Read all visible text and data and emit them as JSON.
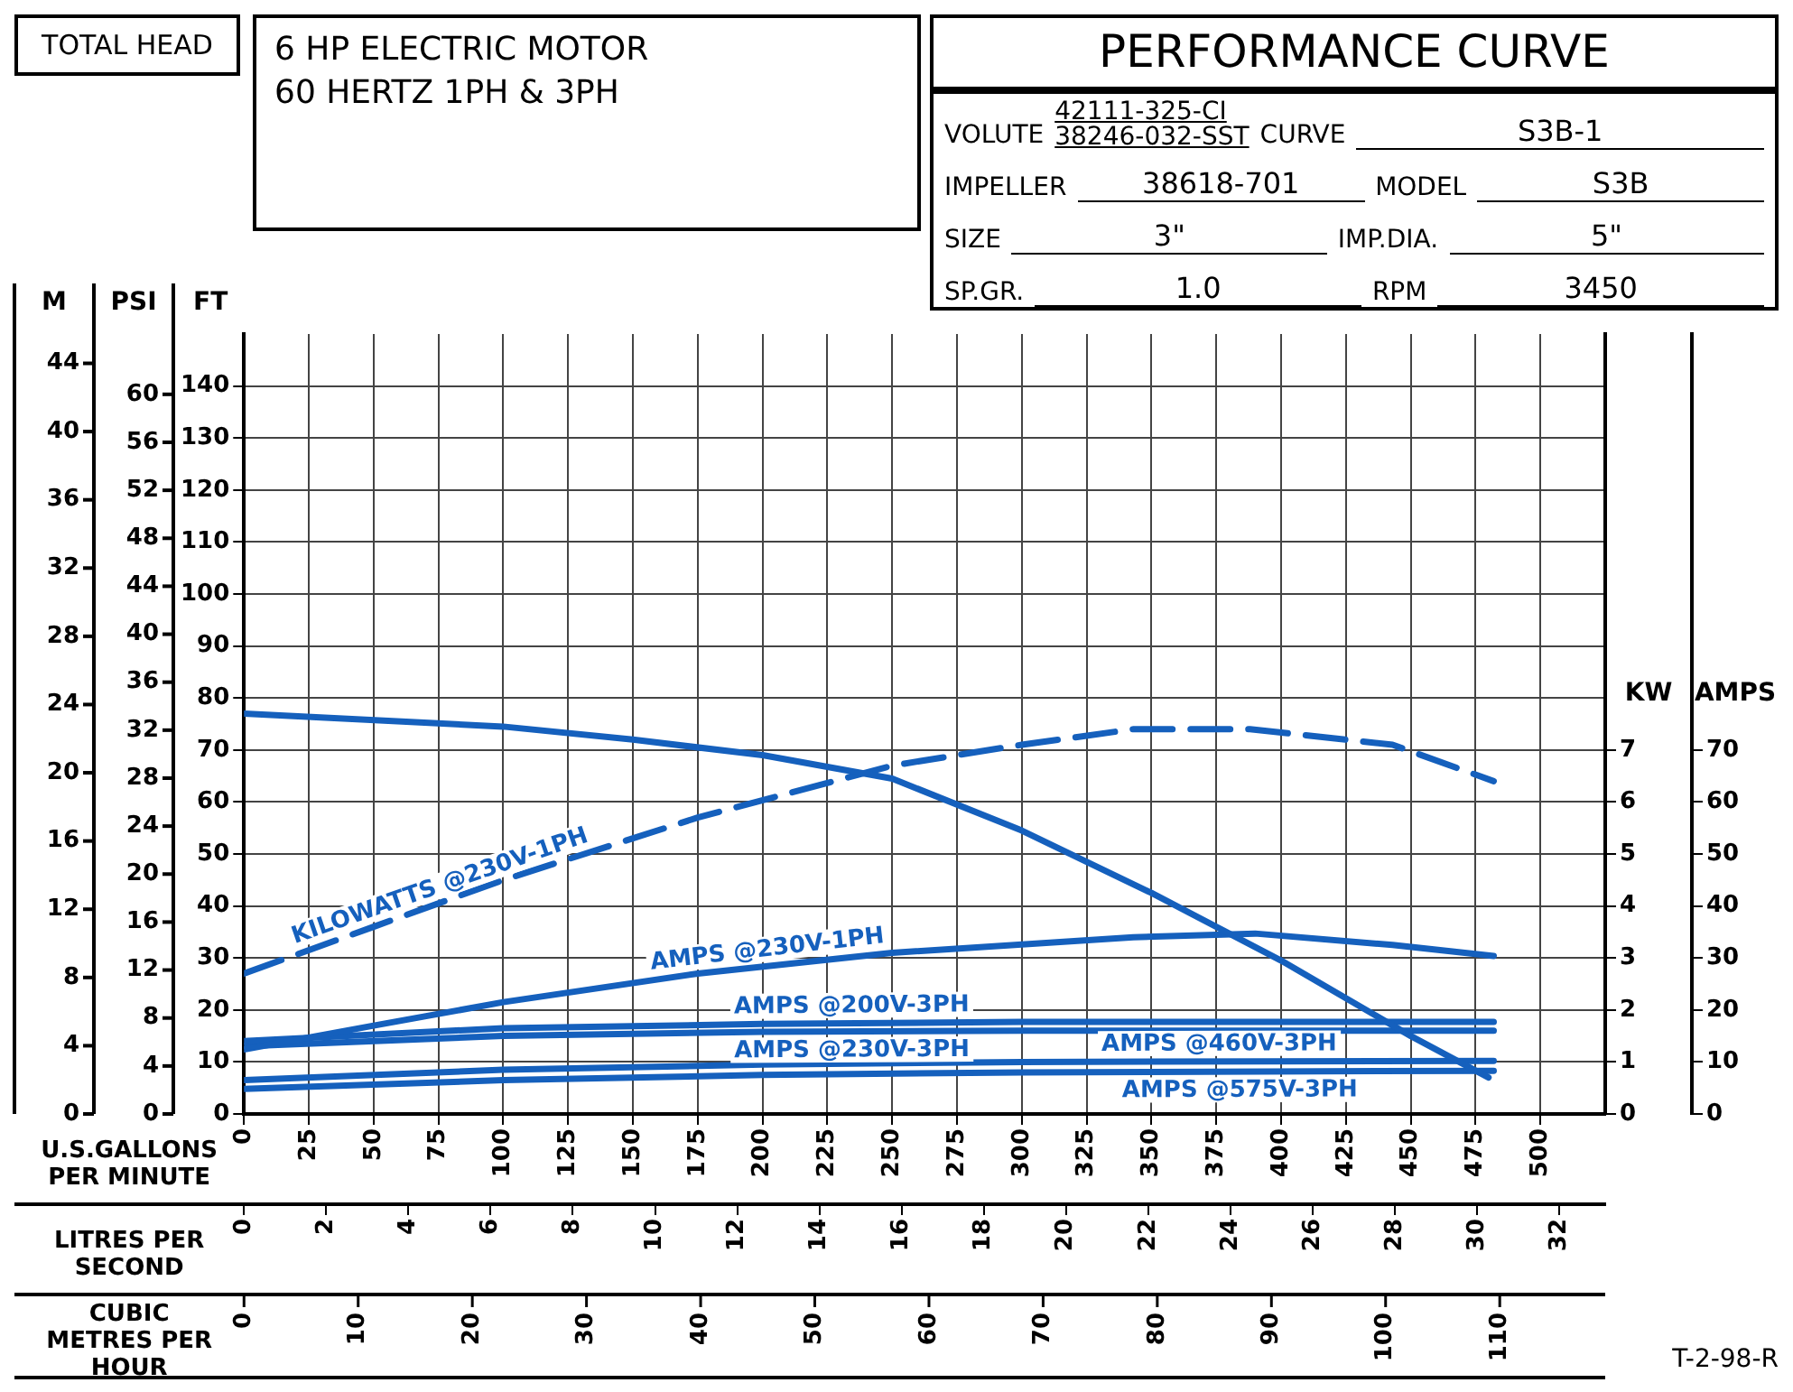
{
  "chart_data": {
    "type": "line",
    "title": "PERFORMANCE CURVE",
    "subtitle": "6 HP ELECTRIC MOTOR\n60 HERTZ 1PH & 3PH",
    "xlabel": "U.S.GALLONS PER MINUTE",
    "x2label": "LITRES PER SECOND",
    "ylabel": "FT",
    "y2label": "KW",
    "y3label": "AMPS",
    "xlim": [
      0,
      525
    ],
    "xticks": [
      0,
      25,
      50,
      75,
      100,
      125,
      150,
      175,
      200,
      225,
      250,
      275,
      300,
      325,
      350,
      375,
      400,
      425,
      450,
      475,
      500
    ],
    "x2lim": [
      0,
      33.12
    ],
    "x2ticks": [
      0,
      2,
      4,
      6,
      8,
      10,
      12,
      14,
      16,
      18,
      20,
      22,
      24,
      26,
      28,
      30,
      32
    ],
    "ylim": [
      0,
      150
    ],
    "yticks": [
      0,
      10,
      20,
      30,
      40,
      50,
      60,
      70,
      80,
      90,
      100,
      110,
      120,
      130,
      140
    ],
    "y2lim": [
      0,
      15
    ],
    "y2ticks": [
      0,
      1,
      2,
      3,
      4,
      5,
      6,
      7
    ],
    "y3lim": [
      0,
      150
    ],
    "y3ticks": [
      0,
      10,
      20,
      30,
      40,
      50,
      60,
      70
    ],
    "grid": true,
    "legend": false,
    "marker": "none",
    "annotations": [
      "TOTAL HEAD",
      "VOLUTE",
      "42111-325-CI",
      "38246-032-SST",
      "CURVE",
      "S3B-1",
      "IMPELLER",
      "38618-701",
      "MODEL",
      "S3B",
      "SIZE",
      "3\"",
      "IMP.DIA.",
      "5\"",
      "SP.GR.",
      "1.0",
      "RPM",
      "3450",
      "T-2-98-R",
      "M",
      "0",
      "4",
      "8",
      "12",
      "16",
      "20",
      "24",
      "28",
      "32",
      "36",
      "40",
      "44",
      "PSI",
      "0",
      "4",
      "8",
      "12",
      "16",
      "20",
      "24",
      "28",
      "32",
      "36",
      "40",
      "44",
      "48",
      "52",
      "56",
      "60",
      "CUBIC METRES PER HOUR",
      "0",
      "10",
      "20",
      "30",
      "40",
      "50",
      "60",
      "70",
      "80",
      "90",
      "100",
      "110"
    ],
    "series": [
      {
        "color": "#1560bd",
        "x": [
          0,
          100,
          150,
          200,
          250,
          300,
          350,
          400,
          450,
          480
        ],
        "values": [
          77,
          74.5,
          72,
          69,
          64.5,
          54.5,
          42.5,
          29.5,
          15,
          7
        ]
      },
      {
        "name": "KILOWATTS @230V-1PH",
        "color": "#1560bd",
        "axis": "y2",
        "line_style": "dashed",
        "x": [
          0,
          50,
          100,
          175,
          250,
          300,
          343,
          388,
          443,
          482
        ],
        "values": [
          2.7,
          3.6,
          4.5,
          5.7,
          6.7,
          7.1,
          7.4,
          7.4,
          7.1,
          6.4
        ]
      },
      {
        "name": "AMPS @230V-1PH",
        "color": "#1560bd",
        "axis": "y3",
        "x": [
          0,
          50,
          100,
          175,
          250,
          343,
          390,
          443,
          482
        ],
        "values": [
          12.4,
          17,
          21.5,
          27,
          31,
          34,
          34.7,
          32.5,
          30.4
        ]
      },
      {
        "name": "AMPS @200V-3PH",
        "color": "#1560bd",
        "axis": "y3",
        "x": [
          0,
          100,
          200,
          300,
          482
        ],
        "values": [
          14,
          16.5,
          17.3,
          17.7,
          17.7
        ]
      },
      {
        "name": "AMPS @230V-3PH",
        "color": "#1560bd",
        "axis": "y3",
        "x": [
          0,
          100,
          200,
          300,
          482
        ],
        "values": [
          13,
          15,
          15.8,
          16,
          16
        ]
      },
      {
        "name": "AMPS @460V-3PH",
        "color": "#1560bd",
        "axis": "y3",
        "x": [
          0,
          100,
          200,
          300,
          482
        ],
        "values": [
          6.5,
          8.5,
          9.5,
          10,
          10.2
        ]
      },
      {
        "name": "AMPS @575V-3PH",
        "color": "#1560bd",
        "axis": "y3",
        "x": [
          0,
          100,
          200,
          300,
          482
        ],
        "values": [
          4.8,
          6.5,
          7.5,
          8,
          8.3
        ]
      }
    ]
  }
}
